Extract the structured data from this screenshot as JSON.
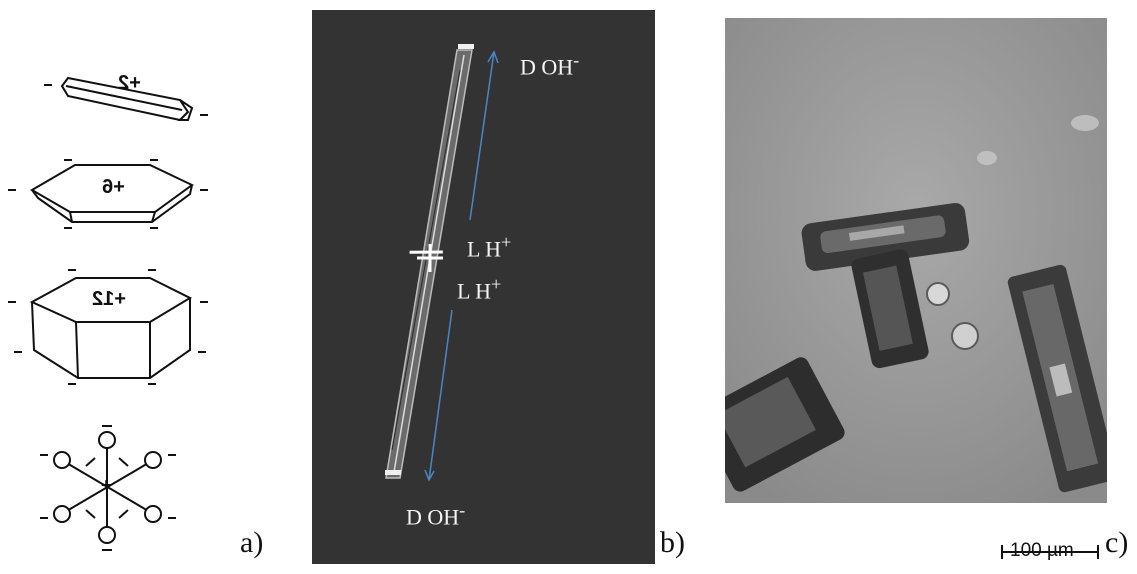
{
  "panel_a": {
    "label": "a)",
    "shapes": [
      {
        "name": "needle-crystal",
        "charge": "+2",
        "edge_charge": "–"
      },
      {
        "name": "plate-crystal",
        "charge": "+6",
        "edge_charge": "–"
      },
      {
        "name": "column-crystal",
        "charge": "+12",
        "edge_charge": "–"
      },
      {
        "name": "dendrite-crystal",
        "charge": "+",
        "edge_charge": "–"
      }
    ]
  },
  "panel_b": {
    "label": "b)",
    "top_text": "D OH",
    "top_sup": "-",
    "mid_text_1": "L H",
    "mid_sup_1": "+",
    "mid_text_2": "L H",
    "mid_sup_2": "+",
    "bottom_text": "D OH",
    "bottom_sup": "-"
  },
  "panel_c": {
    "label": "c)",
    "scale_bar": "100 µm"
  },
  "colors": {
    "panel_b_bg": "#333333",
    "arrow": "#4a86c5",
    "micrograph_bg": "#9b9b9b"
  }
}
